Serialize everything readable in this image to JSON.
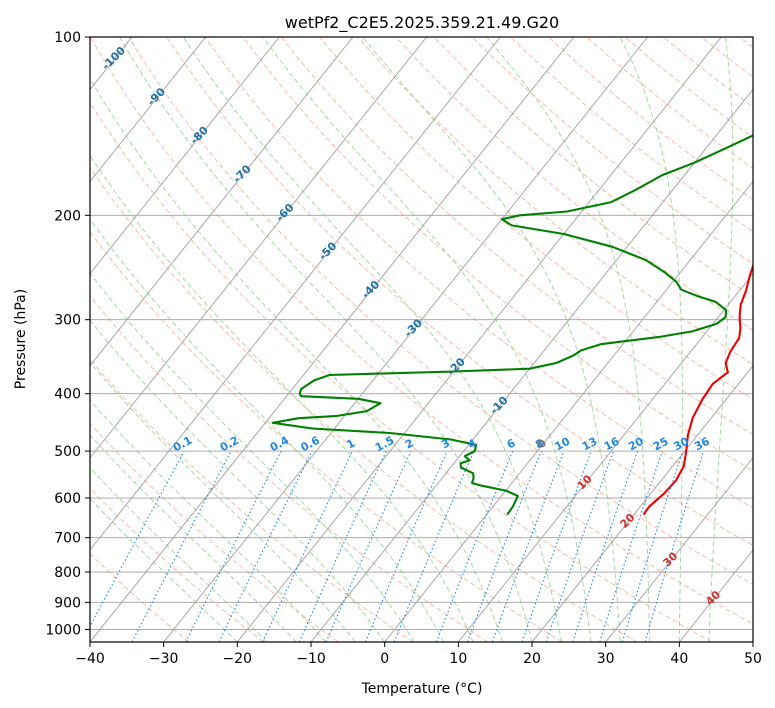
{
  "chart_data": {
    "type": "skew-t",
    "title": "wetPf2_C2E5.2025.359.21.49.G20",
    "xlabel": "Temperature (°C)",
    "ylabel": "Pressure (hPa)",
    "xlim": [
      -40,
      50
    ],
    "ylim": [
      1050,
      100
    ],
    "x_ticks": [
      -40,
      -30,
      -20,
      -10,
      0,
      10,
      20,
      30,
      40,
      50
    ],
    "y_ticks": [
      100,
      200,
      300,
      400,
      500,
      600,
      700,
      800,
      900,
      1000
    ],
    "colors": {
      "temperature": "#ee0000",
      "dewpoint": "#008000",
      "isotherm": "#a0a0a0",
      "isobar": "#a0a0a0",
      "dry_adiabat": "#f4a58a",
      "moist_adiabat": "#8fcf8f",
      "mixing_ratio": "#1e88e5",
      "dry_label": "#1f6fa8"
    },
    "series": [
      {
        "name": "temperature",
        "points": [
          [
            21.3,
            640
          ],
          [
            21.2,
            620
          ],
          [
            21.8,
            590
          ],
          [
            22.0,
            560
          ],
          [
            21.5,
            530
          ],
          [
            20.2,
            500
          ],
          [
            18.7,
            470
          ],
          [
            17.5,
            440
          ],
          [
            16.8,
            410
          ],
          [
            16.5,
            385
          ],
          [
            17.3,
            368
          ],
          [
            16.0,
            355
          ],
          [
            15.4,
            340
          ],
          [
            15.1,
            322
          ],
          [
            14.2,
            310
          ],
          [
            12.8,
            296
          ],
          [
            11.7,
            283
          ],
          [
            10.9,
            268
          ],
          [
            9.8,
            253
          ],
          [
            8.8,
            238
          ],
          [
            7.8,
            222
          ],
          [
            7.1,
            208
          ],
          [
            6.1,
            196
          ],
          [
            4.4,
            178
          ],
          [
            2.8,
            162
          ],
          [
            1.2,
            148
          ],
          [
            -0.6,
            137
          ],
          [
            -1.1,
            131
          ],
          [
            -1.0,
            125
          ],
          [
            -1.0,
            118
          ],
          [
            -1.2,
            111
          ],
          [
            -1.4,
            105
          ],
          [
            -1.4,
            100
          ]
        ]
      },
      {
        "name": "dewpoint",
        "points": [
          [
            2.8,
            640
          ],
          [
            2.7,
            620
          ],
          [
            2.2,
            595
          ],
          [
            0.0,
            583
          ],
          [
            -3.8,
            572
          ],
          [
            -5.4,
            566
          ],
          [
            -5.7,
            556
          ],
          [
            -6.3,
            545
          ],
          [
            -8.6,
            533
          ],
          [
            -9.1,
            524
          ],
          [
            -8.2,
            518
          ],
          [
            -9.3,
            510
          ],
          [
            -8.5,
            500
          ],
          [
            -9.0,
            488
          ],
          [
            -13.0,
            478
          ],
          [
            -22.0,
            466
          ],
          [
            -33.0,
            458
          ],
          [
            -39.0,
            448
          ],
          [
            -36.0,
            440
          ],
          [
            -31.0,
            436
          ],
          [
            -27.5,
            428
          ],
          [
            -26.5,
            415
          ],
          [
            -30.0,
            408
          ],
          [
            -38.0,
            404
          ],
          [
            -38.5,
            400
          ],
          [
            -38.8,
            393
          ],
          [
            -38.0,
            380
          ],
          [
            -36.5,
            372
          ],
          [
            -30.0,
            370
          ],
          [
            -20.0,
            367
          ],
          [
            -10.0,
            363
          ],
          [
            -7.0,
            355
          ],
          [
            -5.5,
            345
          ],
          [
            -5.0,
            338
          ],
          [
            -3.0,
            330
          ],
          [
            0.0,
            326
          ],
          [
            4.0,
            321
          ],
          [
            8.0,
            314
          ],
          [
            10.5,
            305
          ],
          [
            11.0,
            297
          ],
          [
            10.3,
            289
          ],
          [
            8.0,
            280
          ],
          [
            5.0,
            274
          ],
          [
            2.0,
            267
          ],
          [
            0.5,
            259
          ],
          [
            -2.0,
            250
          ],
          [
            -6.0,
            238
          ],
          [
            -12.0,
            226
          ],
          [
            -20.0,
            215
          ],
          [
            -28.0,
            208
          ],
          [
            -30.0,
            203
          ],
          [
            -28.0,
            200
          ],
          [
            -22.0,
            197
          ],
          [
            -17.0,
            190
          ],
          [
            -15.0,
            181
          ],
          [
            -13.0,
            171
          ],
          [
            -10.0,
            163
          ],
          [
            -7.0,
            153
          ],
          [
            -4.5,
            145
          ],
          [
            -3.0,
            139
          ],
          [
            -2.2,
            132
          ],
          [
            -2.0,
            125
          ],
          [
            -2.0,
            117
          ],
          [
            -2.2,
            110
          ],
          [
            -2.0,
            105
          ],
          [
            -1.7,
            100
          ]
        ]
      }
    ],
    "dry_adiabat_labels": [
      "-100",
      "-90",
      "-80",
      "-70",
      "-60",
      "-50",
      "-40",
      "-30",
      "-20",
      "-10",
      "0",
      "10",
      "20",
      "30",
      "40"
    ],
    "mixing_ratio_labels": [
      "0.1",
      "0.2",
      "0.4",
      "0.6",
      "1",
      "1.5",
      "2",
      "3",
      "4",
      "6",
      "8",
      "10",
      "13",
      "16",
      "20",
      "25",
      "30",
      "36"
    ]
  }
}
